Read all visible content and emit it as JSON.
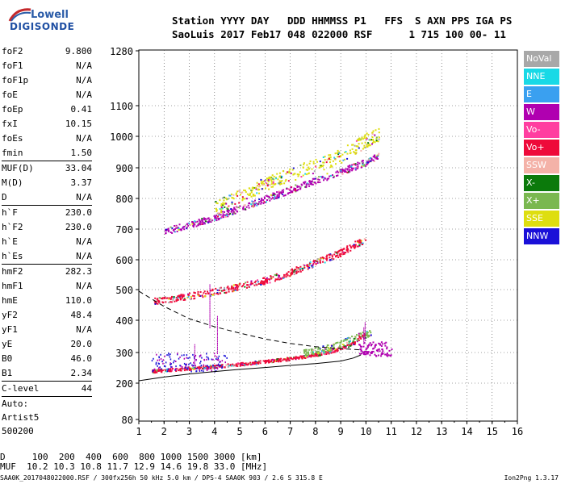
{
  "logo": {
    "line1": "Lowell",
    "line2": "DIGISONDE"
  },
  "header": {
    "line1": "Station YYYY DAY   DDD HHMMSS P1   FFS  S AXN PPS IGA PS",
    "line2": "SaoLuis 2017 Feb17 048 022000 RSF      1 715 100 00- 11"
  },
  "params": {
    "groups": [
      [
        {
          "name": "foF2",
          "value": "9.800"
        },
        {
          "name": "foF1",
          "value": "N/A"
        },
        {
          "name": "foF1p",
          "value": "N/A"
        },
        {
          "name": "foE",
          "value": "N/A"
        },
        {
          "name": "foEp",
          "value": "0.41"
        },
        {
          "name": "fxI",
          "value": "10.15"
        },
        {
          "name": "foEs",
          "value": "N/A"
        },
        {
          "name": "fmin",
          "value": "1.50"
        }
      ],
      [
        {
          "name": "MUF(D)",
          "value": "33.04"
        },
        {
          "name": "M(D)",
          "value": "3.37"
        },
        {
          "name": "D",
          "value": "N/A"
        }
      ],
      [
        {
          "name": "h`F",
          "value": "230.0"
        },
        {
          "name": "h`F2",
          "value": "230.0"
        },
        {
          "name": "h`E",
          "value": "N/A"
        },
        {
          "name": "h`Es",
          "value": "N/A"
        }
      ],
      [
        {
          "name": "hmF2",
          "value": "282.3"
        },
        {
          "name": "hmF1",
          "value": "N/A"
        },
        {
          "name": "hmE",
          "value": "110.0"
        },
        {
          "name": "yF2",
          "value": "48.4"
        },
        {
          "name": "yF1",
          "value": "N/A"
        },
        {
          "name": "yE",
          "value": "20.0"
        },
        {
          "name": "B0",
          "value": "46.0"
        },
        {
          "name": "B1",
          "value": "2.34"
        }
      ],
      [
        {
          "name": "C-level",
          "value": "44"
        }
      ]
    ],
    "extra": [
      "Auto:",
      "Artist5",
      "500200"
    ]
  },
  "legend": [
    {
      "label": "NoVal",
      "color": "#a8a8a8"
    },
    {
      "label": "NNE",
      "color": "#19d9e6"
    },
    {
      "label": "E",
      "color": "#3aa0f0"
    },
    {
      "label": "W",
      "color": "#b000b0"
    },
    {
      "label": "Vo-",
      "color": "#ff3ea0"
    },
    {
      "label": "Vo+",
      "color": "#ee0a3a"
    },
    {
      "label": "SSW",
      "color": "#f4b2a8"
    },
    {
      "label": "X-",
      "color": "#0b7a0b"
    },
    {
      "label": "X+",
      "color": "#7ab850"
    },
    {
      "label": "SSE",
      "color": "#dede10"
    },
    {
      "label": "NNW",
      "color": "#1a10d8"
    }
  ],
  "chart_data": {
    "type": "scatter",
    "title": "",
    "xlabel": "",
    "ylabel": "",
    "xlim": [
      1,
      16
    ],
    "ylim_km": [
      80,
      1280
    ],
    "y_scale": "nonlinear (ionogram height)",
    "xticks": [
      1,
      2,
      3,
      4,
      5,
      6,
      7,
      8,
      9,
      10,
      11,
      12,
      13,
      14,
      15,
      16
    ],
    "yticks": [
      80,
      200,
      300,
      400,
      500,
      600,
      700,
      800,
      900,
      1000,
      1100,
      1280
    ],
    "grid": true,
    "traces": [
      {
        "name": "O-trace 1st hop",
        "color": "#ee0a3a",
        "points": [
          [
            1.5,
            240
          ],
          [
            2,
            244
          ],
          [
            3,
            250
          ],
          [
            4,
            256
          ],
          [
            5,
            264
          ],
          [
            6,
            272
          ],
          [
            7,
            282
          ],
          [
            8,
            295
          ],
          [
            8.5,
            303
          ],
          [
            9,
            315
          ],
          [
            9.5,
            330
          ],
          [
            9.8,
            350
          ],
          [
            10.0,
            362
          ]
        ]
      },
      {
        "name": "O-trace 2nd hop",
        "color": "#ee0a3a",
        "points": [
          [
            1.6,
            465
          ],
          [
            2,
            468
          ],
          [
            3,
            480
          ],
          [
            4,
            495
          ],
          [
            5,
            512
          ],
          [
            6,
            532
          ],
          [
            7,
            560
          ],
          [
            8,
            592
          ],
          [
            9,
            625
          ],
          [
            9.5,
            650
          ],
          [
            10,
            665
          ]
        ]
      },
      {
        "name": "O-trace 3rd hop",
        "color": "#b000b0",
        "points": [
          [
            2,
            695
          ],
          [
            3,
            715
          ],
          [
            4,
            740
          ],
          [
            5,
            770
          ],
          [
            6,
            800
          ],
          [
            7,
            830
          ],
          [
            8,
            860
          ],
          [
            9,
            890
          ],
          [
            10,
            920
          ],
          [
            10.5,
            940
          ]
        ]
      },
      {
        "name": "Yellow F2 band",
        "color": "#dede10",
        "points": [
          [
            4,
            770
          ],
          [
            5,
            810
          ],
          [
            6,
            850
          ],
          [
            7,
            880
          ],
          [
            8,
            910
          ],
          [
            9,
            940
          ],
          [
            10,
            990
          ],
          [
            10.5,
            1010
          ]
        ]
      },
      {
        "name": "X-trace",
        "color": "#7ab850",
        "points": [
          [
            7.5,
            300
          ],
          [
            8.5,
            315
          ],
          [
            9.5,
            345
          ],
          [
            10.2,
            365
          ]
        ]
      }
    ],
    "profile_solid": [
      [
        1.0,
        208
      ],
      [
        2,
        220
      ],
      [
        3,
        230
      ],
      [
        4,
        238
      ],
      [
        5,
        245
      ],
      [
        6,
        251
      ],
      [
        7,
        258
      ],
      [
        8,
        264
      ],
      [
        9,
        272
      ],
      [
        9.5,
        282
      ],
      [
        9.8,
        292
      ]
    ],
    "profile_dashed": [
      [
        1.0,
        495
      ],
      [
        2,
        445
      ],
      [
        3,
        405
      ],
      [
        4,
        380
      ],
      [
        5,
        360
      ],
      [
        6,
        342
      ],
      [
        7,
        328
      ],
      [
        8,
        318
      ],
      [
        9,
        312
      ],
      [
        9.8,
        308
      ]
    ],
    "x_axis_unit": "MHz",
    "y_axis_unit": "km"
  },
  "footer": {
    "distance_row": "D     100  200  400  600  800 1000 1500 3000 [km]",
    "muf_row": "MUF  10.2 10.3 10.8 11.7 12.9 14.6 19.8 33.0 [MHz]",
    "file_info": "SAA0K_2017048022000.RSF / 300fx256h 50 kHz 5.0 km / DPS-4 SAA0K 903 / 2.6 S 315.8 E",
    "version": "Ion2Png 1.3.17"
  }
}
